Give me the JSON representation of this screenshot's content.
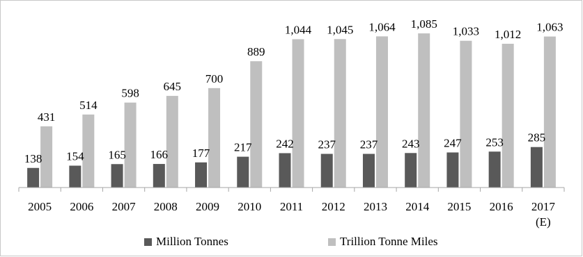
{
  "chart_data": {
    "type": "bar",
    "title": "",
    "xlabel": "",
    "ylabel": "",
    "categories": [
      "2005",
      "2006",
      "2007",
      "2008",
      "2009",
      "2010",
      "2011",
      "2012",
      "2013",
      "2014",
      "2015",
      "2016",
      "2017\n(E)"
    ],
    "series": [
      {
        "name": "Million Tonnes",
        "color": "#595959",
        "values": [
          138,
          154,
          165,
          166,
          177,
          217,
          242,
          237,
          237,
          243,
          247,
          253,
          285
        ],
        "labels": [
          "138",
          "154",
          "165",
          "166",
          "177",
          "217",
          "242",
          "237",
          "237",
          "243",
          "247",
          "253",
          "285"
        ]
      },
      {
        "name": "Trillion Tonne Miles",
        "color": "#bfbfbf",
        "values": [
          431,
          514,
          598,
          645,
          700,
          889,
          1044,
          1045,
          1064,
          1085,
          1033,
          1012,
          1063
        ],
        "labels": [
          "431",
          "514",
          "598",
          "645",
          "700",
          "889",
          "1,044",
          "1,045",
          "1,064",
          "1,085",
          "1,033",
          "1,012",
          "1,063"
        ]
      }
    ],
    "ylim": [
      0,
      1100
    ],
    "grid": false,
    "legend_position": "bottom"
  }
}
